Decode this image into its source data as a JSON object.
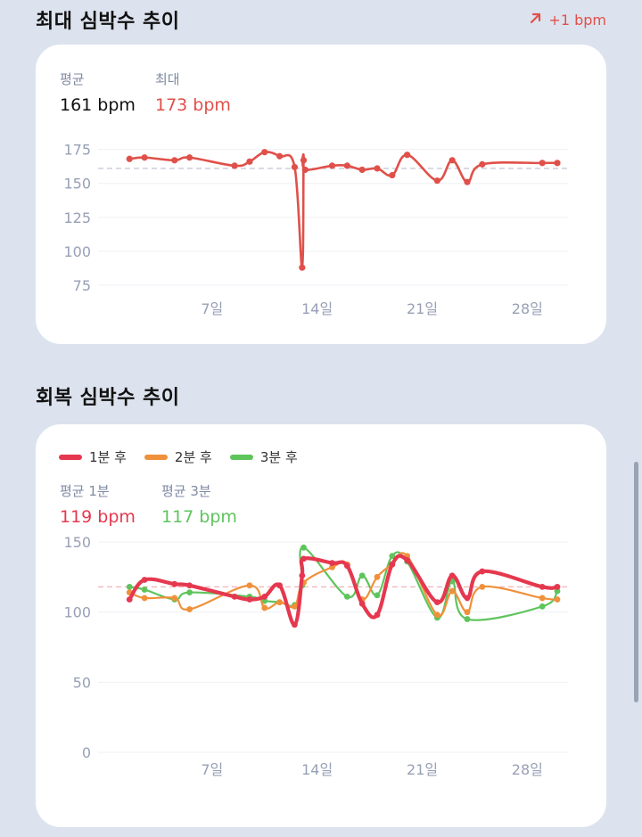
{
  "max_section": {
    "title": "최대 심박수 추이",
    "trend": "+1 bpm",
    "trend_color": "#e0504a",
    "stats": [
      {
        "label": "평균",
        "value": "161 bpm",
        "color": "#111111"
      },
      {
        "label": "최대",
        "value": "173 bpm",
        "color": "#e0504a"
      }
    ]
  },
  "recovery_section": {
    "title": "회복 심박수 추이",
    "legend": [
      {
        "label": "1분 후",
        "color": "#e5384f"
      },
      {
        "label": "2분 후",
        "color": "#f0903a"
      },
      {
        "label": "3분 후",
        "color": "#5ec45c"
      }
    ],
    "stats": [
      {
        "label": "평균 1분",
        "value": "119 bpm",
        "color": "#e5384f"
      },
      {
        "label": "평균 3분",
        "value": "117 bpm",
        "color": "#5ec45c"
      }
    ]
  },
  "chart_data": [
    {
      "type": "line",
      "title": "최대 심박수 추이",
      "x_ticks": [
        {
          "label": "7일",
          "x": 7
        },
        {
          "label": "14일",
          "x": 14
        },
        {
          "label": "21일",
          "x": 21
        },
        {
          "label": "28일",
          "x": 28
        }
      ],
      "xlim": [
        0,
        30
      ],
      "y_ticks": [
        175,
        150,
        125,
        100,
        75
      ],
      "ylim": [
        75,
        180
      ],
      "average": 161,
      "series": [
        {
          "color": "#e0504a",
          "x": [
            1.5,
            2.5,
            4.5,
            5.5,
            8.5,
            9.5,
            10.5,
            11.5,
            12.5,
            13.0,
            13.1,
            13.2,
            15.0,
            16.0,
            17.0,
            18.0,
            19.0,
            20.0,
            22.0,
            23.0,
            24.0,
            25.0,
            29.0,
            30.0
          ],
          "y": [
            168,
            169,
            167,
            169,
            163,
            166,
            173,
            170,
            162,
            88,
            167,
            160,
            163,
            163,
            160,
            161,
            156,
            171,
            152,
            167,
            151,
            164,
            165,
            165
          ]
        }
      ],
      "grid": true
    },
    {
      "type": "line",
      "title": "회복 심박수 추이",
      "x_ticks": [
        {
          "label": "7일",
          "x": 7
        },
        {
          "label": "14일",
          "x": 14
        },
        {
          "label": "21일",
          "x": 21
        },
        {
          "label": "28일",
          "x": 28
        }
      ],
      "xlim": [
        0,
        30
      ],
      "y_ticks": [
        150,
        100,
        50,
        0
      ],
      "ylim": [
        0,
        150
      ],
      "average": 118,
      "series": [
        {
          "name": "1분 후",
          "color": "#e5384f",
          "x": [
            1.5,
            2.5,
            4.5,
            5.5,
            8.5,
            9.5,
            10.5,
            11.5,
            12.5,
            13.0,
            13.1,
            15.0,
            16.0,
            17.0,
            18.0,
            19.0,
            20.0,
            22.0,
            23.0,
            24.0,
            25.0,
            29.0,
            30.0
          ],
          "y": [
            109,
            123,
            120,
            119,
            111,
            109,
            111,
            119,
            91,
            126,
            138,
            135,
            133,
            106,
            98,
            134,
            137,
            107,
            126,
            110,
            129,
            118,
            118
          ]
        },
        {
          "name": "2분 후",
          "color": "#f0903a",
          "x": [
            1.5,
            2.5,
            4.5,
            5.5,
            9.5,
            10.5,
            11.5,
            12.5,
            13.1,
            15.0,
            16.0,
            17.0,
            18.0,
            19.0,
            20.0,
            22.0,
            23.0,
            24.0,
            25.0,
            29.0,
            30.0
          ],
          "y": [
            114,
            110,
            110,
            102,
            119,
            103,
            107,
            104,
            121,
            132,
            134,
            109,
            125,
            134,
            140,
            98,
            115,
            100,
            118,
            110,
            109
          ]
        },
        {
          "name": "3분 후",
          "color": "#5ec45c",
          "x": [
            1.5,
            2.5,
            4.5,
            5.5,
            9.5,
            10.5,
            11.5,
            12.5,
            13.0,
            13.1,
            16.0,
            17.0,
            18.0,
            19.0,
            20.0,
            22.0,
            23.0,
            24.0,
            29.0,
            30.0
          ],
          "y": [
            118,
            116,
            109,
            114,
            111,
            108,
            107,
            105,
            119,
            146,
            111,
            126,
            112,
            140,
            136,
            96,
            122,
            95,
            104,
            115
          ]
        }
      ],
      "grid": true
    }
  ]
}
